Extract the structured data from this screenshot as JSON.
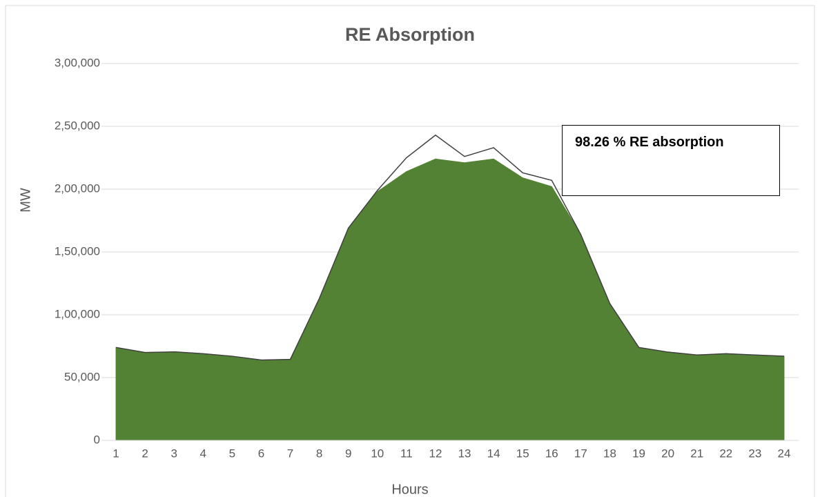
{
  "chart_data": {
    "type": "area",
    "title": "RE Absorption",
    "x_label": "Hours",
    "y_label": "MW",
    "categories": [
      1,
      2,
      3,
      4,
      5,
      6,
      7,
      8,
      9,
      10,
      11,
      12,
      13,
      14,
      15,
      16,
      17,
      18,
      19,
      20,
      21,
      22,
      23,
      24
    ],
    "series": [
      {
        "color": "#548235",
        "values": [
          74000,
          70000,
          70500,
          69000,
          67000,
          64000,
          64500,
          113000,
          169000,
          198000,
          214000,
          224000,
          221000,
          224000,
          209000,
          202000,
          164000,
          109000,
          74000,
          70300,
          68000,
          69000,
          68000,
          67000
        ]
      },
      {
        "color": "#404040",
        "kind": "line",
        "values": [
          74000,
          70000,
          70500,
          69000,
          67000,
          64000,
          64500,
          113000,
          169000,
          199000,
          225000,
          243000,
          226000,
          233000,
          213000,
          207000,
          164000,
          109000,
          74000,
          70300,
          68000,
          69000,
          68000,
          67000
        ]
      }
    ],
    "annotation": "98.26 %  RE absorption",
    "ylim": [
      0,
      300000
    ],
    "yticks": [
      0,
      {
        "value": 50000,
        "label": "50,000"
      },
      {
        "value": 100000,
        "label": "1,00,000"
      },
      {
        "value": 150000,
        "label": "1,50,000"
      },
      {
        "value": 200000,
        "label": "2,00,000"
      },
      {
        "value": 250000,
        "label": "2,50,000"
      },
      {
        "value": 300000,
        "label": "3,00,000"
      }
    ],
    "grid": true
  }
}
